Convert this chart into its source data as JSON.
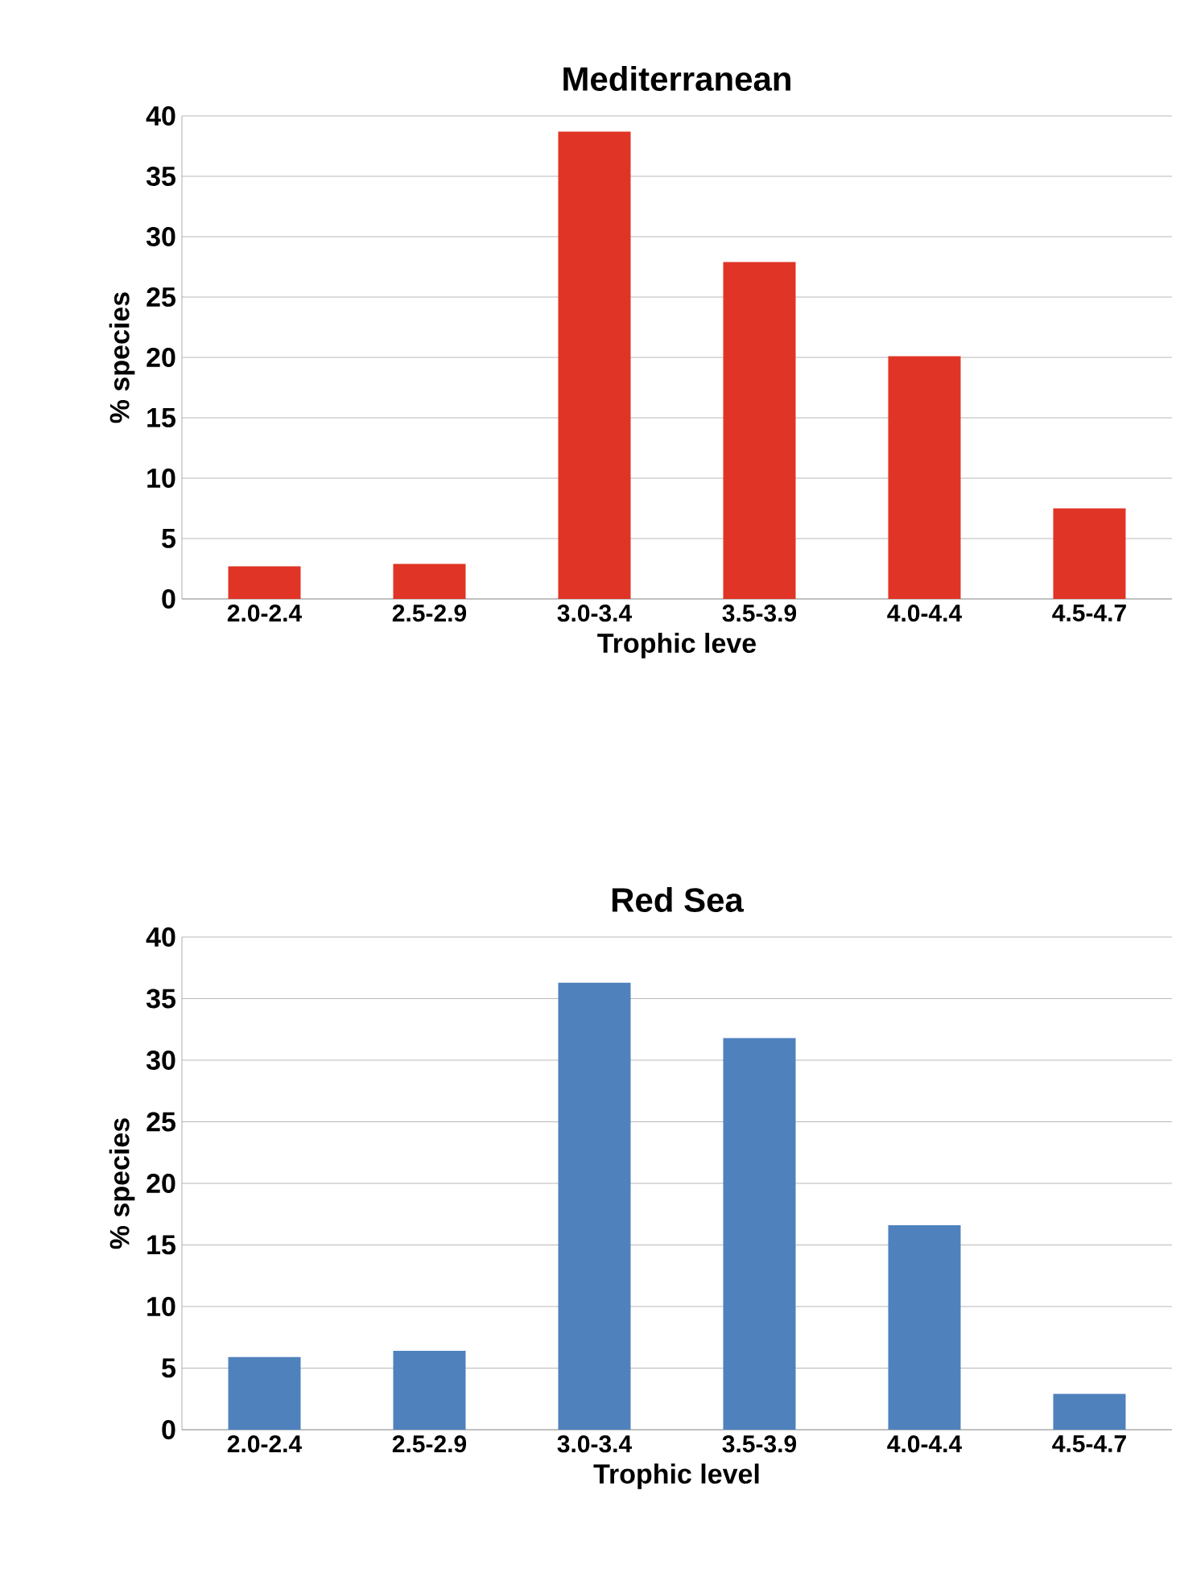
{
  "chart_data": [
    {
      "type": "bar",
      "title": "Mediterranean",
      "xlabel": "Trophic leve",
      "ylabel": "% species",
      "categories": [
        "2.0-2.4",
        "2.5-2.9",
        "3.0-3.4",
        "3.5-3.9",
        "4.0-4.4",
        "4.5-4.7"
      ],
      "values": [
        2.7,
        2.9,
        38.7,
        27.9,
        20.1,
        7.5
      ],
      "color": "#e03426",
      "ylim": [
        0,
        40
      ],
      "yticks": [
        0,
        5,
        10,
        15,
        20,
        25,
        30,
        35,
        40
      ],
      "grid": "y"
    },
    {
      "type": "bar",
      "title": "Red Sea",
      "xlabel": "Trophic level",
      "ylabel": "% species",
      "categories": [
        "2.0-2.4",
        "2.5-2.9",
        "3.0-3.4",
        "3.5-3.9",
        "4.0-4.4",
        "4.5-4.7"
      ],
      "values": [
        5.9,
        6.4,
        36.3,
        31.8,
        16.6,
        2.9
      ],
      "color": "#4f81bd",
      "ylim": [
        0,
        40
      ],
      "yticks": [
        0,
        5,
        10,
        15,
        20,
        25,
        30,
        35,
        40
      ],
      "grid": "y"
    }
  ]
}
